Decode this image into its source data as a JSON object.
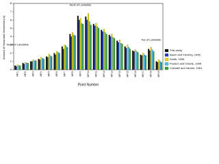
{
  "chart_data": {
    "type": "bar",
    "y_label": "Amount of Horizontal Movement (m)",
    "x_label": "Point Number",
    "categories": [
      "MP1",
      "MP2",
      "MP3",
      "MP4",
      "MP5",
      "MP6",
      "MP7",
      "MP8",
      "MP9",
      "MP10",
      "MP11",
      "MP12",
      "MP13",
      "MP14",
      "MP15",
      "MP16",
      "MP17",
      "MP18",
      "MP19"
    ],
    "series": [
      {
        "name": "This study",
        "color": "#111111",
        "values": [
          0.5,
          0.8,
          1.0,
          1.3,
          1.6,
          2.0,
          2.8,
          4.3,
          6.5,
          6.4,
          5.5,
          4.8,
          4.2,
          3.5,
          2.8,
          2.3,
          1.8,
          2.5,
          1.0
        ]
      },
      {
        "name": "Baum and Fleming, 1996",
        "color": "#1f3fbf",
        "values": [
          0.4,
          0.7,
          1.0,
          1.2,
          1.5,
          1.8,
          2.5,
          4.0,
          6.0,
          6.0,
          5.3,
          4.6,
          4.0,
          3.3,
          2.6,
          2.2,
          1.7,
          2.3,
          0.9
        ]
      },
      {
        "name": "Smith, 1996",
        "color": "#e8e000",
        "values": [
          0.6,
          0.9,
          1.2,
          1.5,
          1.9,
          2.2,
          3.0,
          4.5,
          6.2,
          6.8,
          5.6,
          4.9,
          4.3,
          3.6,
          3.0,
          2.4,
          2.0,
          2.7,
          1.2
        ]
      },
      {
        "name": "Powers and Chiarle, 1995",
        "color": "#4fc3f0",
        "values": [
          0.5,
          0.8,
          1.1,
          1.4,
          1.7,
          2.1,
          2.9,
          4.2,
          5.6,
          5.8,
          5.2,
          4.5,
          3.9,
          3.2,
          2.7,
          2.2,
          1.8,
          2.4,
          1.0
        ]
      },
      {
        "name": "Crandell and Varnes, 1961",
        "color": "#3aa63a",
        "values": [
          0.5,
          0.8,
          1.1,
          1.3,
          1.6,
          2.0,
          2.7,
          4.1,
          5.5,
          5.4,
          5.0,
          4.3,
          3.8,
          3.1,
          2.5,
          2.1,
          1.7,
          2.2,
          0.9
        ]
      }
    ],
    "annotations": [
      {
        "text": "Head of Landslide",
        "category": 0,
        "value": 3.0
      },
      {
        "text": "Neck of Landslide",
        "category": 8,
        "value": 7.8
      },
      {
        "text": "Toe of Landslide",
        "category": 17,
        "value": 3.6
      }
    ],
    "ylim": [
      0,
      8
    ],
    "yticks": [
      0,
      1,
      2,
      3,
      4,
      5,
      6,
      7,
      8
    ]
  }
}
